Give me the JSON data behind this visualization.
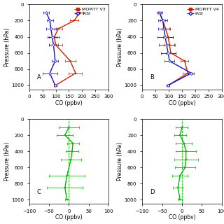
{
  "panel_A": {
    "label": "A",
    "pressures": [
      100,
      200,
      300,
      400,
      500,
      700,
      850,
      1000
    ],
    "mopitt_co": [
      190,
      170,
      110,
      95,
      100,
      155,
      175,
      100
    ],
    "mopitt_xerr": [
      15,
      15,
      15,
      20,
      25,
      20,
      25,
      5
    ],
    "iasi_co": [
      65,
      78,
      82,
      87,
      92,
      98,
      78,
      98
    ],
    "iasi_xerr": [
      10,
      12,
      18,
      18,
      18,
      12,
      28,
      5
    ],
    "xlim": [
      0,
      300
    ],
    "xticks": [
      0,
      50,
      100,
      150,
      200,
      250,
      300
    ],
    "legend_title": "MOPITT V3"
  },
  "panel_B": {
    "label": "B",
    "pressures": [
      100,
      200,
      300,
      400,
      500,
      600,
      700,
      850,
      1000
    ],
    "mopitt_co": [
      65,
      78,
      88,
      98,
      103,
      108,
      160,
      172,
      98
    ],
    "mopitt_xerr": [
      5,
      10,
      14,
      18,
      22,
      18,
      14,
      18,
      5
    ],
    "iasi_co": [
      65,
      78,
      82,
      87,
      92,
      98,
      103,
      185,
      98
    ],
    "iasi_xerr": [
      10,
      18,
      22,
      28,
      28,
      28,
      18,
      10,
      5
    ],
    "xlim": [
      0,
      300
    ],
    "xticks": [
      0,
      50,
      100,
      150,
      200,
      250,
      300
    ],
    "legend_title": "MOPITT V4"
  },
  "panel_C": {
    "label": "C",
    "pressures": [
      100,
      200,
      300,
      400,
      500,
      700,
      850,
      1000
    ],
    "diff_co": [
      0,
      -10,
      10,
      8,
      5,
      -5,
      -10,
      -5
    ],
    "diff_xerr": [
      25,
      20,
      15,
      15,
      25,
      45,
      45,
      5
    ],
    "xlim": [
      -100,
      100
    ],
    "xticks": [
      -100,
      -50,
      0,
      50,
      100
    ]
  },
  "panel_D": {
    "label": "D",
    "pressures": [
      100,
      200,
      300,
      400,
      500,
      600,
      700,
      850,
      1000
    ],
    "diff_co": [
      0,
      -5,
      5,
      10,
      10,
      8,
      -5,
      -10,
      -5
    ],
    "diff_xerr": [
      15,
      15,
      20,
      25,
      30,
      25,
      20,
      12,
      5
    ],
    "xlim": [
      -100,
      100
    ],
    "xticks": [
      -100,
      -50,
      0,
      50,
      100
    ]
  },
  "mopitt_color": "#cc2200",
  "iasi_color": "#1111cc",
  "diff_color": "#00bb00",
  "bg_color": "#ffffff",
  "ylim": [
    1050,
    0
  ],
  "yticks": [
    0,
    200,
    400,
    600,
    800,
    1000
  ],
  "xlabel": "CO (ppbv)",
  "ylabel_top": "Pressure (hPa)",
  "ylabel_bottom": "Pressure (hPa)",
  "tick_fontsize": 5,
  "label_fontsize": 5.5,
  "legend_fontsize": 4.5
}
